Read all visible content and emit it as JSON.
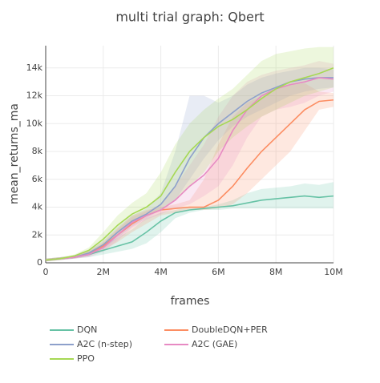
{
  "chart_data": {
    "type": "line",
    "title": "multi trial graph: Qbert",
    "x_label": "frames",
    "y_label": "mean_returns_ma",
    "x": [
      0,
      500000,
      1000000,
      1500000,
      2000000,
      2500000,
      3000000,
      3500000,
      4000000,
      4500000,
      5000000,
      5500000,
      6000000,
      6500000,
      7000000,
      7500000,
      8000000,
      8500000,
      9000000,
      9500000,
      10000000
    ],
    "xlim": [
      0,
      10000000
    ],
    "xticks": [
      0,
      {
        "value": 2000000,
        "label": "2M"
      },
      {
        "value": 4000000,
        "label": "4M"
      },
      {
        "value": 6000000,
        "label": "6M"
      },
      {
        "value": 8000000,
        "label": "8M"
      },
      {
        "value": 10000000,
        "label": "10M"
      }
    ],
    "ylim": [
      0,
      15600
    ],
    "yticks": [
      0,
      {
        "value": 2000,
        "label": "2k"
      },
      {
        "value": 4000,
        "label": "4k"
      },
      {
        "value": 6000,
        "label": "6k"
      },
      {
        "value": 8000,
        "label": "8k"
      },
      {
        "value": 10000,
        "label": "10k"
      },
      {
        "value": 12000,
        "label": "12k"
      },
      {
        "value": 14000,
        "label": "14k"
      }
    ],
    "grid": true,
    "series": [
      {
        "name": "DQN",
        "color": "#66c2a5",
        "values": [
          200,
          300,
          400,
          600,
          900,
          1200,
          1500,
          2200,
          3000,
          3600,
          3800,
          3900,
          4000,
          4100,
          4300,
          4500,
          4600,
          4700,
          4800,
          4700,
          4800
        ],
        "lower": [
          100,
          200,
          300,
          400,
          600,
          800,
          1000,
          1400,
          2200,
          3200,
          3600,
          3800,
          3800,
          3900,
          3900,
          3900,
          3900,
          3900,
          3900,
          3900,
          3900
        ],
        "upper": [
          300,
          400,
          500,
          800,
          1300,
          1800,
          2400,
          3200,
          3600,
          3800,
          4000,
          4000,
          4200,
          4500,
          5000,
          5300,
          5400,
          5500,
          5700,
          5600,
          5800
        ]
      },
      {
        "name": "DoubleDQN+PER",
        "color": "#fc8d62",
        "values": [
          200,
          300,
          400,
          700,
          1200,
          2000,
          2800,
          3400,
          3800,
          3900,
          4000,
          4000,
          4500,
          5500,
          6800,
          8000,
          9000,
          10000,
          11000,
          11600,
          11700
        ],
        "lower": [
          100,
          200,
          300,
          500,
          900,
          1500,
          2200,
          2800,
          3400,
          3600,
          3800,
          3800,
          3900,
          4200,
          5000,
          6000,
          7000,
          8000,
          9500,
          11000,
          11200
        ],
        "upper": [
          300,
          400,
          500,
          900,
          1500,
          2500,
          3400,
          3800,
          4000,
          4200,
          4500,
          6000,
          8500,
          10500,
          11500,
          12000,
          12500,
          12800,
          12900,
          12300,
          12200
        ]
      },
      {
        "name": "A2C (n-step)",
        "color": "#8da0cb",
        "values": [
          200,
          300,
          400,
          700,
          1300,
          2200,
          3000,
          3500,
          4200,
          5500,
          7500,
          9000,
          10000,
          10800,
          11600,
          12200,
          12600,
          13000,
          13200,
          13300,
          13300
        ],
        "lower": [
          100,
          200,
          300,
          500,
          1000,
          1800,
          2600,
          3200,
          3800,
          4500,
          6000,
          7500,
          8800,
          9800,
          10500,
          11000,
          11500,
          12000,
          12300,
          12500,
          12600
        ],
        "upper": [
          300,
          400,
          500,
          900,
          1600,
          2600,
          3400,
          3900,
          5000,
          8000,
          12000,
          12000,
          11500,
          12000,
          12800,
          13300,
          13600,
          13800,
          14000,
          14000,
          13900
        ]
      },
      {
        "name": "A2C (GAE)",
        "color": "#e78ac3",
        "values": [
          200,
          300,
          400,
          600,
          1100,
          2000,
          2900,
          3400,
          3800,
          4500,
          5500,
          6300,
          7500,
          9500,
          11000,
          12000,
          12500,
          12800,
          13000,
          13300,
          13200
        ],
        "lower": [
          100,
          200,
          300,
          400,
          800,
          1600,
          2500,
          3100,
          3500,
          3900,
          4200,
          4800,
          5500,
          7000,
          9000,
          10500,
          11000,
          11200,
          11500,
          12000,
          12300
        ],
        "upper": [
          300,
          400,
          500,
          800,
          1400,
          2400,
          3300,
          3700,
          4200,
          5500,
          7000,
          8500,
          10500,
          12000,
          13000,
          13500,
          13800,
          14000,
          14200,
          14500,
          14300
        ]
      },
      {
        "name": "PPO",
        "color": "#a6d854",
        "values": [
          200,
          300,
          500,
          900,
          1700,
          2700,
          3500,
          4000,
          4800,
          6500,
          8000,
          9000,
          9800,
          10300,
          11000,
          11800,
          12500,
          13000,
          13300,
          13600,
          14000
        ],
        "lower": [
          100,
          200,
          400,
          700,
          1200,
          2000,
          2800,
          3400,
          3800,
          4500,
          5500,
          6500,
          8000,
          9000,
          9800,
          10500,
          11000,
          11500,
          12000,
          12300,
          12600
        ],
        "upper": [
          300,
          400,
          600,
          1100,
          2200,
          3400,
          4300,
          5000,
          6500,
          8500,
          10000,
          11000,
          11800,
          12500,
          13500,
          14500,
          15000,
          15200,
          15400,
          15500,
          15500
        ]
      }
    ]
  }
}
